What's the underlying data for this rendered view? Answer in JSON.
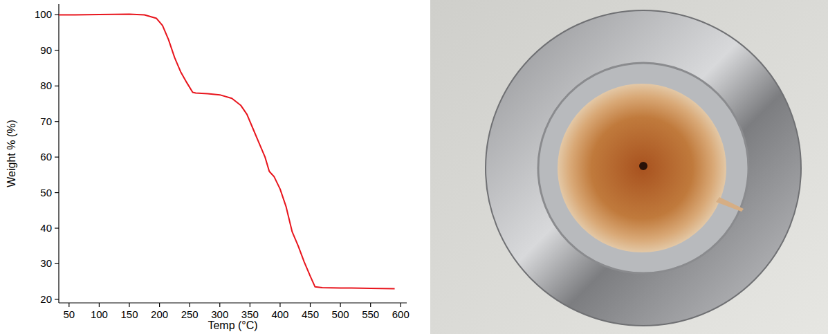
{
  "chart_data": {
    "type": "line",
    "x_label": "Temp (°C)",
    "y_label": "Weight % (%)",
    "x": [
      33,
      60,
      100,
      150,
      175,
      195,
      205,
      215,
      225,
      235,
      245,
      255,
      260,
      280,
      300,
      320,
      335,
      345,
      355,
      365,
      375,
      382,
      390,
      400,
      410,
      420,
      430,
      440,
      450,
      458,
      470,
      500,
      550,
      590
    ],
    "series": [
      {
        "name": "Weight %",
        "color": "#e8141c",
        "values": [
          100,
          100,
          100.1,
          100.2,
          100,
          99,
          97,
          93,
          88,
          84,
          81,
          78.2,
          78,
          77.8,
          77.5,
          76.5,
          74.5,
          72,
          68,
          64,
          60,
          56,
          54.5,
          51,
          46,
          39,
          35,
          30.5,
          26.5,
          23.5,
          23.3,
          23.2,
          23.1,
          23
        ]
      }
    ],
    "xlim": [
      33,
      610
    ],
    "ylim": [
      19,
      103
    ],
    "xticks": [
      50,
      100,
      150,
      200,
      250,
      300,
      350,
      400,
      450,
      500,
      550,
      600
    ],
    "yticks": [
      20,
      30,
      40,
      50,
      60,
      70,
      80,
      90,
      100
    ],
    "grid": false
  }
}
